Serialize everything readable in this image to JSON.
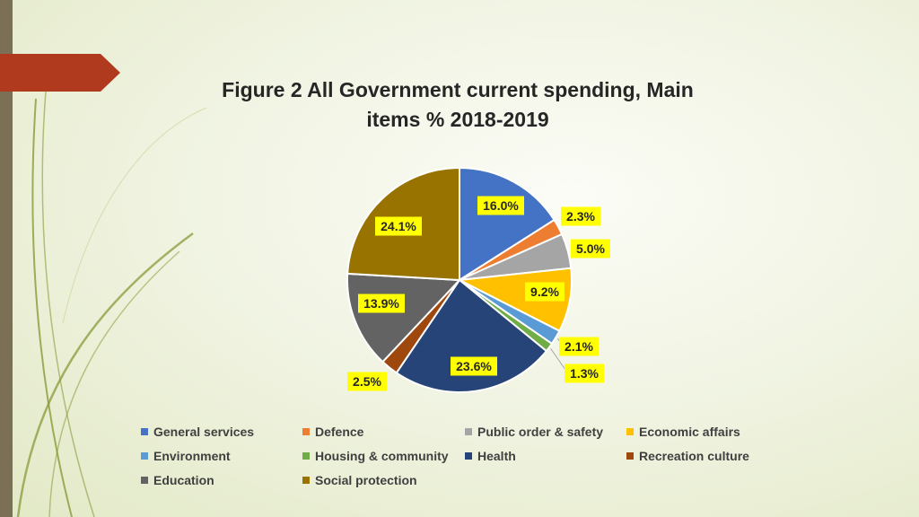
{
  "title": {
    "line1": "Figure 2 All Government current spending, Main",
    "line2": "items % 2018-2019"
  },
  "theme": {
    "accent_color": "#b03a1e",
    "bar_color": "#7b6f55",
    "swoosh_color": "#8a9a3a"
  },
  "chart_data": {
    "type": "pie",
    "title": "Figure 2 All Government current spending, Main items % 2018-2019",
    "unit": "%",
    "legend_position": "bottom",
    "slices": [
      {
        "name": "General  services",
        "value": 16.0,
        "label": "16.0%",
        "color": "#4472c4"
      },
      {
        "name": "Defence",
        "value": 2.3,
        "label": "2.3%",
        "color": "#ed7d31"
      },
      {
        "name": "Public order & safety",
        "value": 5.0,
        "label": "5.0%",
        "color": "#a5a5a5"
      },
      {
        "name": "Economic affairs",
        "value": 9.2,
        "label": "9.2%",
        "color": "#ffc000"
      },
      {
        "name": "Environment",
        "value": 2.1,
        "label": "2.1%",
        "color": "#5b9bd5"
      },
      {
        "name": "Housing  & community",
        "value": 1.3,
        "label": "1.3%",
        "color": "#70ad47"
      },
      {
        "name": "Health",
        "value": 23.6,
        "label": "23.6%",
        "color": "#264478"
      },
      {
        "name": "Recreation culture",
        "value": 2.5,
        "label": "2.5%",
        "color": "#9e480e"
      },
      {
        "name": "Education",
        "value": 13.9,
        "label": "13.9%",
        "color": "#636363"
      },
      {
        "name": "Social protection",
        "value": 24.1,
        "label": "24.1%",
        "color": "#997300"
      }
    ]
  }
}
